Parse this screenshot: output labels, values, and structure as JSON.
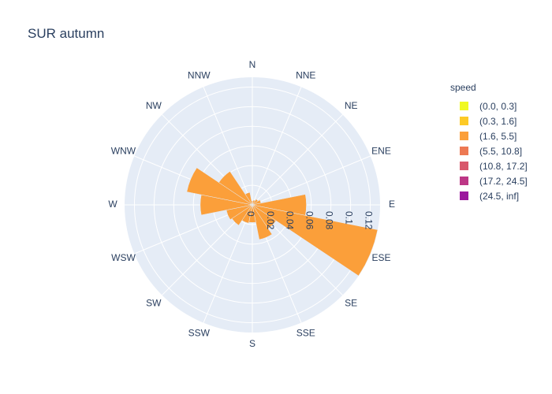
{
  "chart_data": {
    "type": "barpolar",
    "title": "SUR autumn",
    "legend_title": "speed",
    "legend_position": "right",
    "directions": [
      "N",
      "NNE",
      "NE",
      "ENE",
      "E",
      "ESE",
      "SE",
      "SSE",
      "S",
      "SSW",
      "SW",
      "WSW",
      "W",
      "WNW",
      "NW",
      "NNW"
    ],
    "radial_ticks": [
      "0",
      "0.02",
      "0.04",
      "0.06",
      "0.08",
      "0.1",
      "0.12"
    ],
    "radial_range": [
      0,
      0.13
    ],
    "series": [
      {
        "name": "(0.0, 0.3]",
        "color": "#f0f921",
        "values": [
          0,
          0,
          0,
          0,
          0,
          0,
          0,
          0,
          0,
          0,
          0,
          0,
          0,
          0,
          0,
          0
        ]
      },
      {
        "name": "(0.3, 1.6]",
        "color": "#fdca26",
        "values": [
          0.001,
          0.001,
          0.001,
          0.001,
          0.002,
          0.001,
          0.001,
          0.001,
          0.002,
          0.001,
          0.001,
          0.001,
          0.002,
          0.002,
          0.001,
          0.001
        ]
      },
      {
        "name": "(1.6, 5.5]",
        "color": "#fb9f3a",
        "values": [
          0.003,
          0.004,
          0.006,
          0.008,
          0.053,
          0.129,
          0.028,
          0.035,
          0.016,
          0.018,
          0.024,
          0.026,
          0.051,
          0.066,
          0.04,
          0.012
        ]
      },
      {
        "name": "(5.5, 10.8]",
        "color": "#ed7953",
        "values": [
          0,
          0,
          0,
          0,
          0,
          0,
          0,
          0,
          0,
          0,
          0,
          0,
          0,
          0,
          0,
          0
        ]
      },
      {
        "name": "(10.8, 17.2]",
        "color": "#d8576b",
        "values": [
          0,
          0,
          0,
          0,
          0,
          0,
          0,
          0,
          0,
          0,
          0,
          0,
          0,
          0,
          0,
          0
        ]
      },
      {
        "name": "(17.2, 24.5]",
        "color": "#bd3786",
        "values": [
          0,
          0,
          0,
          0,
          0,
          0,
          0,
          0,
          0,
          0,
          0,
          0,
          0,
          0,
          0,
          0
        ]
      },
      {
        "name": "(24.5, inf]",
        "color": "#9c179e",
        "values": [
          0,
          0,
          0,
          0,
          0,
          0,
          0,
          0,
          0,
          0,
          0,
          0,
          0,
          0,
          0,
          0
        ]
      }
    ]
  }
}
